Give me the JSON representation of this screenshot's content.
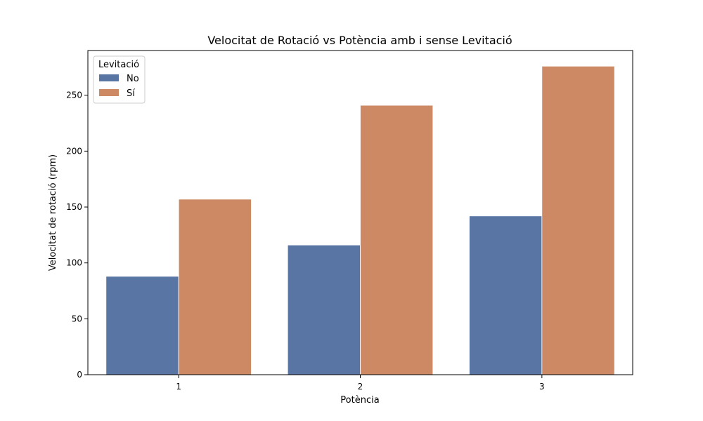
{
  "chart_data": {
    "type": "bar",
    "title": "Velocitat de Rotació vs Potència amb i sense Levitació",
    "xlabel": "Potència",
    "ylabel": "Velocitat de rotació (rpm)",
    "categories": [
      "1",
      "2",
      "3"
    ],
    "ylim": [
      0,
      290
    ],
    "yticks": [
      0,
      50,
      100,
      150,
      200,
      250
    ],
    "grid": false,
    "legend": {
      "title": "Levitació",
      "placement": "top-left"
    },
    "series": [
      {
        "name": "No",
        "color": "#5975a4",
        "values": [
          88,
          116,
          142
        ]
      },
      {
        "name": "Sí",
        "color": "#cc8963",
        "values": [
          157,
          241,
          276
        ]
      }
    ]
  }
}
